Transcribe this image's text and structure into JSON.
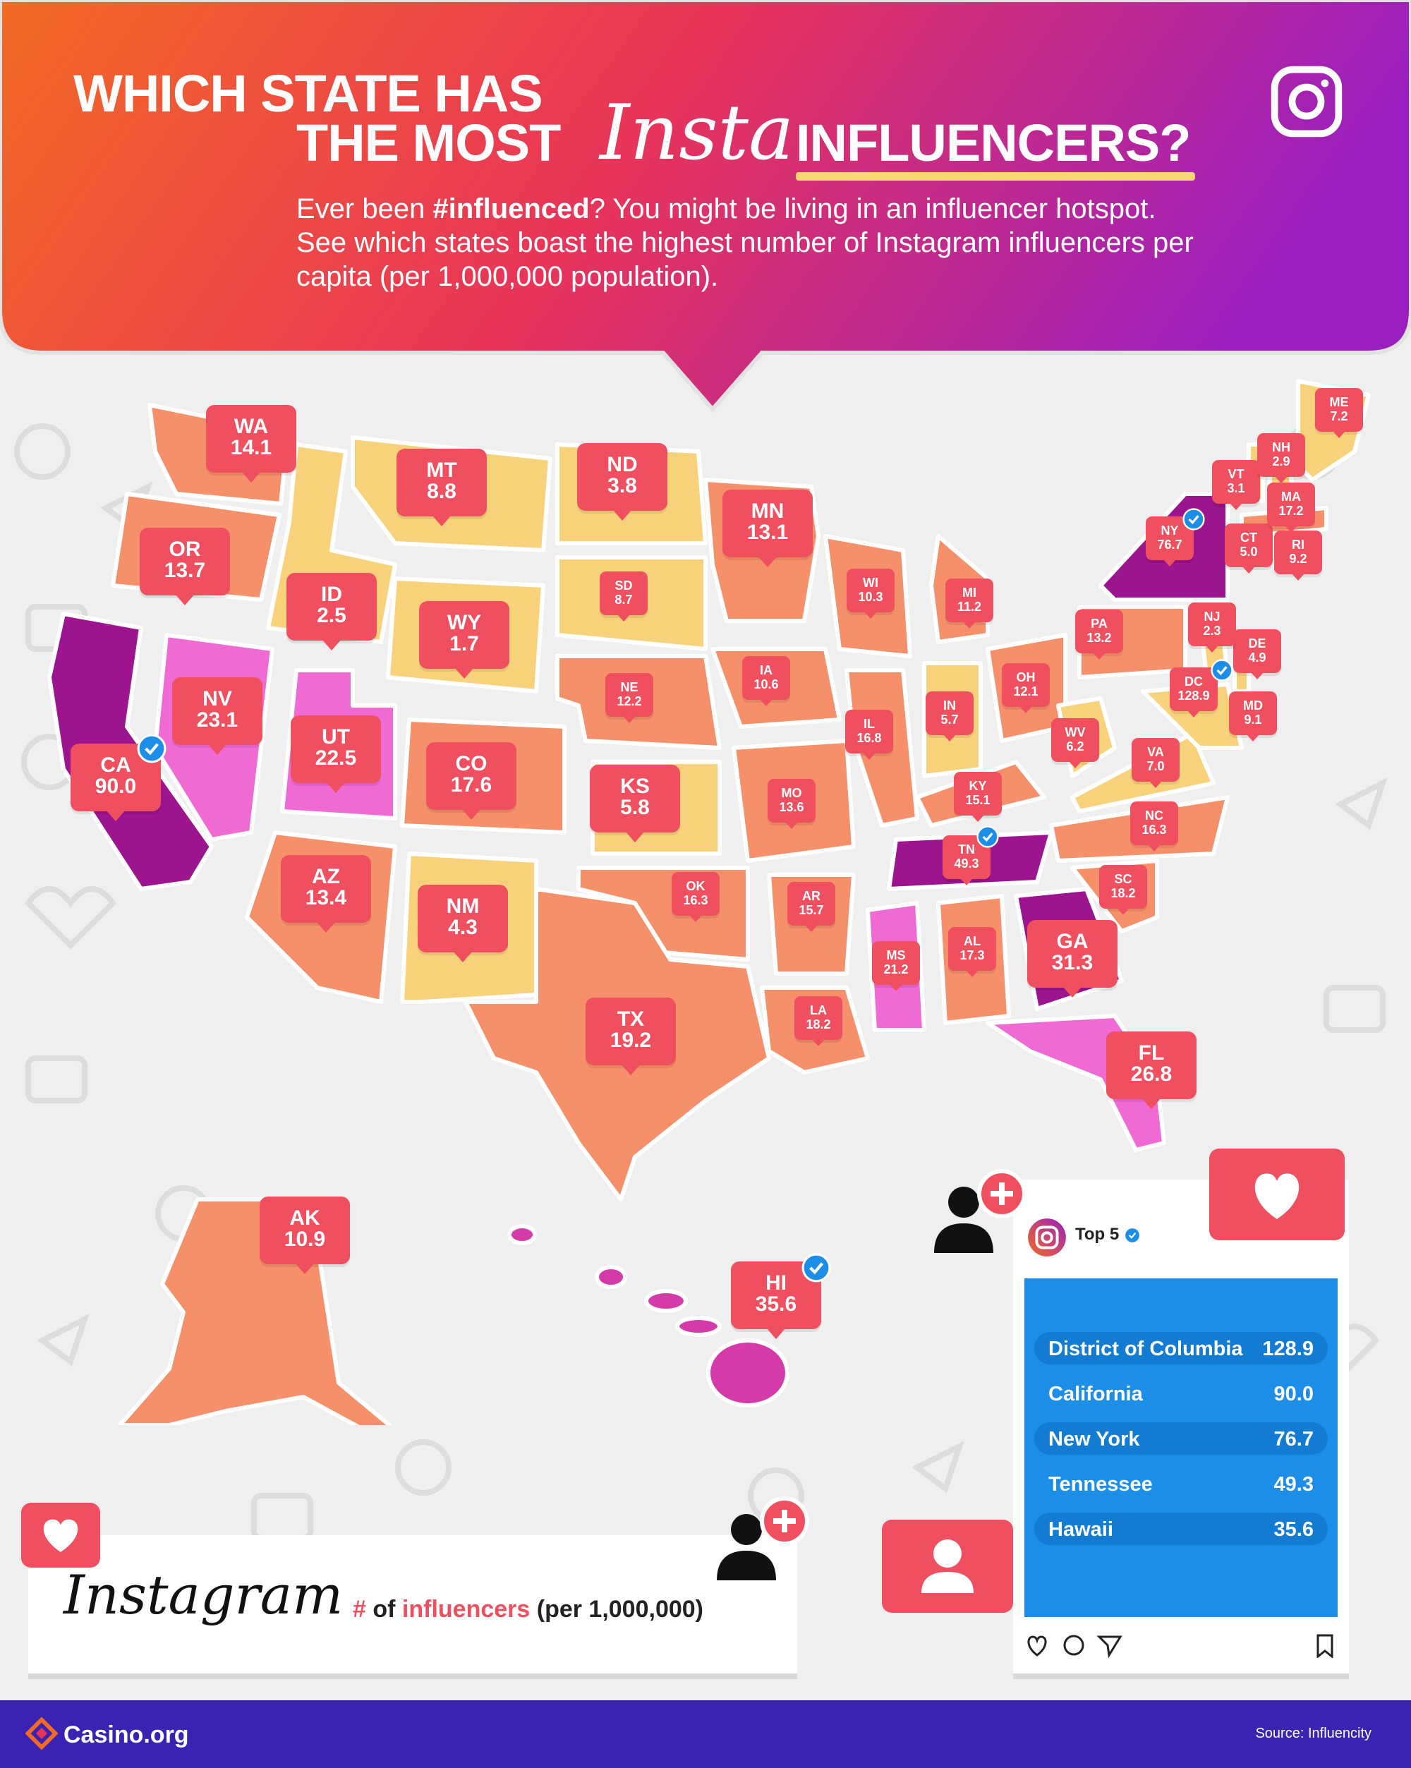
{
  "header": {
    "title_line1": "WHICH STATE HAS",
    "title_line2_a": "THE MOST",
    "title_script": "Insta",
    "title_line2_b": "INFLUENCERS?",
    "subtitle_a": "Ever been ",
    "subtitle_bold": "#influenced",
    "subtitle_b": "? You might be living in an influencer hotspot. See which states boast the highest number of Instagram influencers per capita (per 1,000,000 population)."
  },
  "colors": {
    "gradient": [
      "#f36a24",
      "#e8345a",
      "#9b1fbf"
    ],
    "tier_low": "#f7d27a",
    "tier_mid": "#f5906a",
    "tier_high": "#ef6ad3",
    "tier_top": "#9c148e",
    "pin": "#ef4f5f",
    "footer": "#3a22b3",
    "top5_panel": "#1d8ee8"
  },
  "states": [
    {
      "abbr": "WA",
      "value": "14.1",
      "size": "lg"
    },
    {
      "abbr": "OR",
      "value": "13.7",
      "size": "lg"
    },
    {
      "abbr": "CA",
      "value": "90.0",
      "size": "lg",
      "verified": true
    },
    {
      "abbr": "ID",
      "value": "2.5",
      "size": "lg"
    },
    {
      "abbr": "NV",
      "value": "23.1",
      "size": "lg"
    },
    {
      "abbr": "MT",
      "value": "8.8",
      "size": "lg"
    },
    {
      "abbr": "WY",
      "value": "1.7",
      "size": "lg"
    },
    {
      "abbr": "UT",
      "value": "22.5",
      "size": "lg"
    },
    {
      "abbr": "AZ",
      "value": "13.4",
      "size": "lg"
    },
    {
      "abbr": "CO",
      "value": "17.6",
      "size": "lg"
    },
    {
      "abbr": "NM",
      "value": "4.3",
      "size": "lg"
    },
    {
      "abbr": "ND",
      "value": "3.8",
      "size": "lg"
    },
    {
      "abbr": "SD",
      "value": "8.7",
      "size": "sm"
    },
    {
      "abbr": "NE",
      "value": "12.2",
      "size": "sm"
    },
    {
      "abbr": "KS",
      "value": "5.8",
      "size": "lg"
    },
    {
      "abbr": "OK",
      "value": "16.3",
      "size": "sm"
    },
    {
      "abbr": "TX",
      "value": "19.2",
      "size": "lg"
    },
    {
      "abbr": "MN",
      "value": "13.1",
      "size": "lg"
    },
    {
      "abbr": "IA",
      "value": "10.6",
      "size": "sm"
    },
    {
      "abbr": "MO",
      "value": "13.6",
      "size": "sm"
    },
    {
      "abbr": "AR",
      "value": "15.7",
      "size": "sm"
    },
    {
      "abbr": "LA",
      "value": "18.2",
      "size": "sm"
    },
    {
      "abbr": "WI",
      "value": "10.3",
      "size": "sm"
    },
    {
      "abbr": "IL",
      "value": "16.8",
      "size": "sm"
    },
    {
      "abbr": "MI",
      "value": "11.2",
      "size": "sm"
    },
    {
      "abbr": "IN",
      "value": "5.7",
      "size": "sm"
    },
    {
      "abbr": "OH",
      "value": "12.1",
      "size": "sm"
    },
    {
      "abbr": "KY",
      "value": "15.1",
      "size": "sm"
    },
    {
      "abbr": "TN",
      "value": "49.3",
      "size": "sm",
      "verified": true
    },
    {
      "abbr": "MS",
      "value": "21.2",
      "size": "sm"
    },
    {
      "abbr": "AL",
      "value": "17.3",
      "size": "sm"
    },
    {
      "abbr": "GA",
      "value": "31.3",
      "size": "lg"
    },
    {
      "abbr": "FL",
      "value": "26.8",
      "size": "lg"
    },
    {
      "abbr": "SC",
      "value": "18.2",
      "size": "sm"
    },
    {
      "abbr": "NC",
      "value": "16.3",
      "size": "sm"
    },
    {
      "abbr": "VA",
      "value": "7.0",
      "size": "sm"
    },
    {
      "abbr": "WV",
      "value": "6.2",
      "size": "sm"
    },
    {
      "abbr": "PA",
      "value": "13.2",
      "size": "sm"
    },
    {
      "abbr": "NY",
      "value": "76.7",
      "size": "sm",
      "verified": true
    },
    {
      "abbr": "DC",
      "value": "128.9",
      "size": "sm",
      "verified": true
    },
    {
      "abbr": "MD",
      "value": "9.1",
      "size": "sm"
    },
    {
      "abbr": "DE",
      "value": "4.9",
      "size": "sm"
    },
    {
      "abbr": "NJ",
      "value": "2.3",
      "size": "sm"
    },
    {
      "abbr": "CT",
      "value": "5.0",
      "size": "sm"
    },
    {
      "abbr": "RI",
      "value": "9.2",
      "size": "sm"
    },
    {
      "abbr": "MA",
      "value": "17.2",
      "size": "sm"
    },
    {
      "abbr": "VT",
      "value": "3.1",
      "size": "sm"
    },
    {
      "abbr": "NH",
      "value": "2.9",
      "size": "sm"
    },
    {
      "abbr": "ME",
      "value": "7.2",
      "size": "sm"
    },
    {
      "abbr": "AK",
      "value": "10.9",
      "size": "lg"
    },
    {
      "abbr": "HI",
      "value": "35.6",
      "size": "lg",
      "verified": true
    }
  ],
  "legend": {
    "brand_script": "Instagram",
    "hash": "#",
    "of": " of ",
    "highlight": "influencers",
    "suffix": " (per 1,000,000)"
  },
  "top5": {
    "account": "Top 5",
    "rows": [
      {
        "name": "District of Columbia",
        "value": "128.9"
      },
      {
        "name": "California",
        "value": "90.0"
      },
      {
        "name": "New York",
        "value": "76.7"
      },
      {
        "name": "Tennessee",
        "value": "49.3"
      },
      {
        "name": "Hawaii",
        "value": "35.6"
      }
    ]
  },
  "footer": {
    "brand": "Casino.org",
    "source": "Source: Influencity"
  },
  "icons": [
    "instagram-icon",
    "heart-icon",
    "user-icon",
    "user-plus-icon",
    "verified-badge-icon",
    "comment-icon",
    "send-icon",
    "bookmark-icon",
    "casino-logo-icon"
  ]
}
